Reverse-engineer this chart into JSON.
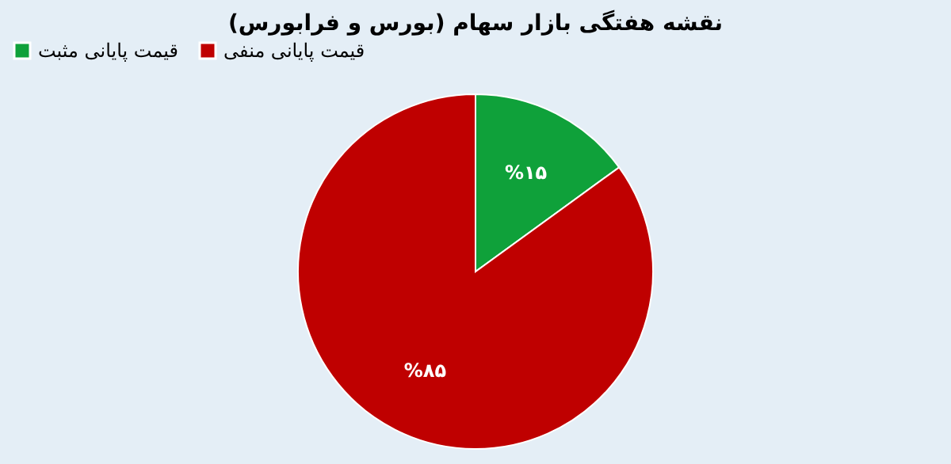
{
  "chart_data": {
    "type": "pie",
    "title": "نقشه هفتگی بازار سهام (بورس و فرابورس)",
    "categories": [
      "قیمت پایانی مثبت",
      "قیمت پایانی منفی"
    ],
    "values": [
      15,
      85
    ],
    "colors": [
      "#0fa13a",
      "#bf0000"
    ],
    "value_labels": [
      "%۱۵",
      "%۸۵"
    ],
    "legend": "top"
  }
}
